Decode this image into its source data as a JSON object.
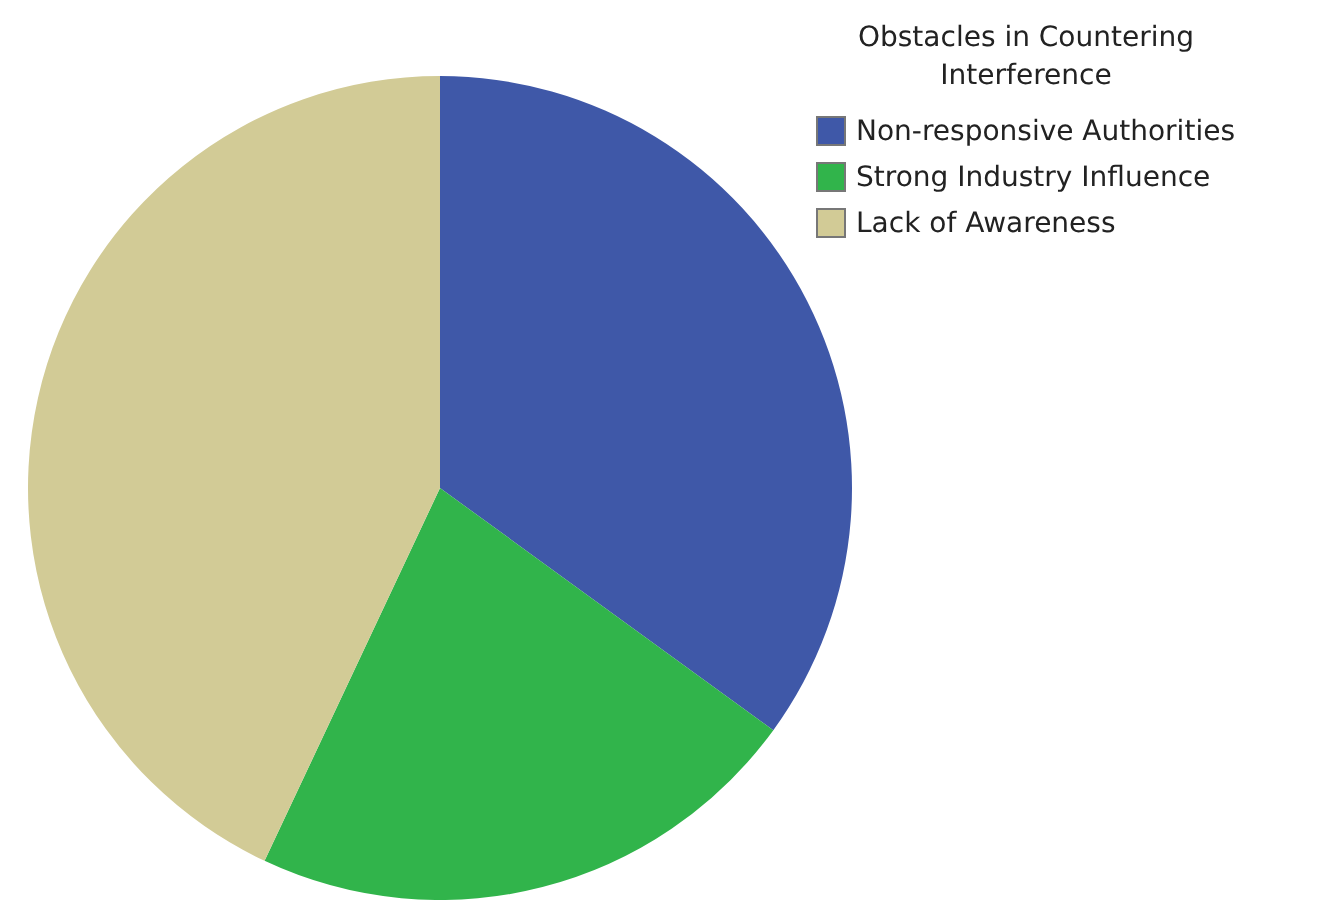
{
  "chart_data": {
    "type": "pie",
    "legend_title": "Obstacles in Countering Interference",
    "categories": [
      "Non-responsive Authorities",
      "Strong Industry Influence",
      "Lack of Awareness"
    ],
    "values": [
      35,
      22,
      43
    ],
    "colors": [
      "#3f58a8",
      "#31b44b",
      "#d2cb96"
    ],
    "legend": "top right"
  }
}
